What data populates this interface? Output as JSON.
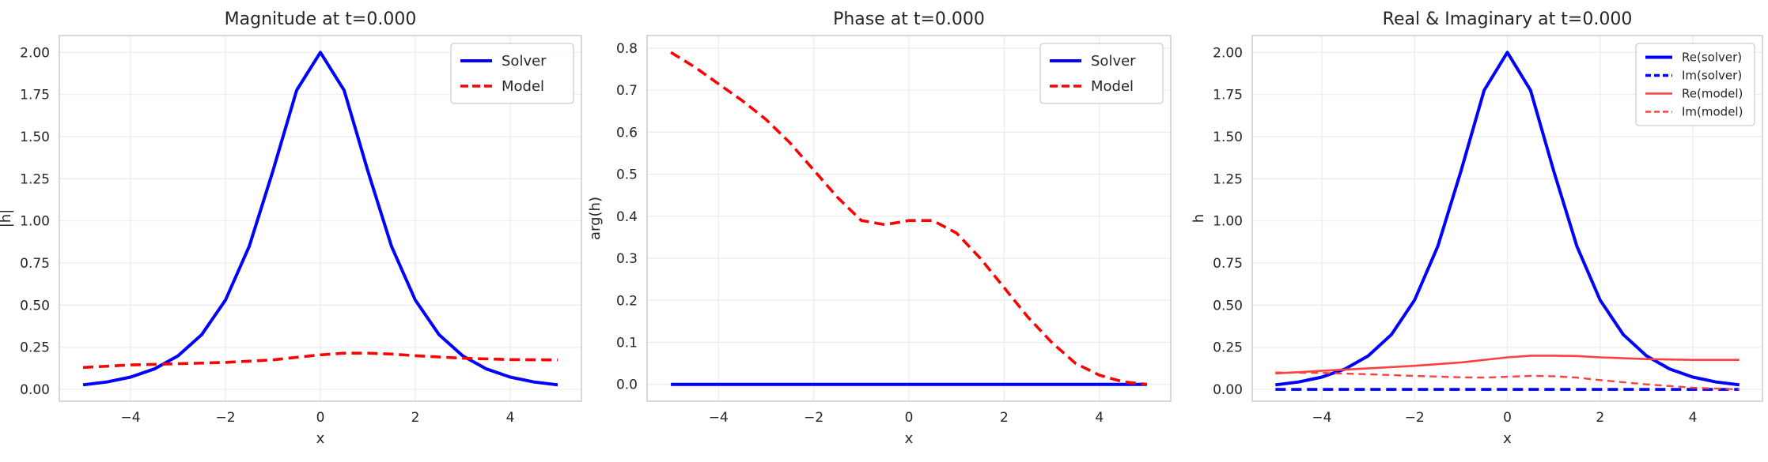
{
  "chart_data": [
    {
      "type": "line",
      "title": "Magnitude at t=0.000",
      "xlabel": "x",
      "ylabel": "|h|",
      "xlim": [
        -5.5,
        5.5
      ],
      "ylim": [
        -0.07,
        2.1
      ],
      "xticks": [
        -4,
        -2,
        0,
        2,
        4
      ],
      "xtick_labels": [
        "−4",
        "−2",
        "0",
        "2",
        "4"
      ],
      "yticks": [
        0,
        0.25,
        0.5,
        0.75,
        1.0,
        1.25,
        1.5,
        1.75,
        2.0
      ],
      "ytick_labels": [
        "0.00",
        "0.25",
        "0.50",
        "0.75",
        "1.00",
        "1.25",
        "1.50",
        "1.75",
        "2.00"
      ],
      "grid": true,
      "legend_position": "top-right",
      "series": [
        {
          "name": "Solver",
          "color": "#0000ff",
          "style": "solid",
          "x": [
            -5,
            -4.5,
            -4,
            -3.5,
            -3,
            -2.5,
            -2,
            -1.5,
            -1,
            -0.5,
            0,
            0.5,
            1,
            1.5,
            2,
            2.5,
            3,
            3.5,
            4,
            4.5,
            5
          ],
          "values": [
            0.027,
            0.044,
            0.073,
            0.121,
            0.199,
            0.325,
            0.53,
            0.848,
            1.296,
            1.775,
            2.0,
            1.775,
            1.296,
            0.848,
            0.53,
            0.325,
            0.199,
            0.121,
            0.073,
            0.044,
            0.027
          ]
        },
        {
          "name": "Model",
          "color": "#ff0000",
          "style": "dashed",
          "x": [
            -5,
            -4,
            -3,
            -2,
            -1,
            -0.5,
            0,
            0.5,
            1,
            1.5,
            2,
            3,
            4,
            5
          ],
          "values": [
            0.13,
            0.145,
            0.152,
            0.16,
            0.175,
            0.19,
            0.205,
            0.215,
            0.215,
            0.21,
            0.2,
            0.185,
            0.177,
            0.175
          ]
        }
      ]
    },
    {
      "type": "line",
      "title": "Phase at t=0.000",
      "xlabel": "x",
      "ylabel": "arg(h)",
      "xlim": [
        -5.5,
        5.5
      ],
      "ylim": [
        -0.04,
        0.83
      ],
      "xticks": [
        -4,
        -2,
        0,
        2,
        4
      ],
      "xtick_labels": [
        "−4",
        "−2",
        "0",
        "2",
        "4"
      ],
      "yticks": [
        0,
        0.1,
        0.2,
        0.3,
        0.4,
        0.5,
        0.6,
        0.7,
        0.8
      ],
      "ytick_labels": [
        "0.0",
        "0.1",
        "0.2",
        "0.3",
        "0.4",
        "0.5",
        "0.6",
        "0.7",
        "0.8"
      ],
      "grid": true,
      "legend_position": "top-right",
      "series": [
        {
          "name": "Solver",
          "color": "#0000ff",
          "style": "solid",
          "x": [
            -5,
            5
          ],
          "values": [
            0,
            0
          ]
        },
        {
          "name": "Model",
          "color": "#ff0000",
          "style": "dashed",
          "x": [
            -5,
            -4.5,
            -4,
            -3.5,
            -3,
            -2.5,
            -2,
            -1.5,
            -1,
            -0.5,
            0,
            0.5,
            1,
            1.5,
            2,
            2.5,
            3,
            3.5,
            4,
            4.5,
            5
          ],
          "values": [
            0.79,
            0.755,
            0.715,
            0.675,
            0.63,
            0.575,
            0.51,
            0.445,
            0.39,
            0.38,
            0.39,
            0.39,
            0.36,
            0.3,
            0.23,
            0.16,
            0.1,
            0.05,
            0.022,
            0.006,
            0.0
          ]
        }
      ]
    },
    {
      "type": "line",
      "title": "Real & Imaginary at t=0.000",
      "xlabel": "x",
      "ylabel": "h",
      "xlim": [
        -5.5,
        5.5
      ],
      "ylim": [
        -0.07,
        2.1
      ],
      "xticks": [
        -4,
        -2,
        0,
        2,
        4
      ],
      "xtick_labels": [
        "−4",
        "−2",
        "0",
        "2",
        "4"
      ],
      "yticks": [
        0,
        0.25,
        0.5,
        0.75,
        1.0,
        1.25,
        1.5,
        1.75,
        2.0
      ],
      "ytick_labels": [
        "0.00",
        "0.25",
        "0.50",
        "0.75",
        "1.00",
        "1.25",
        "1.50",
        "1.75",
        "2.00"
      ],
      "grid": true,
      "legend_position": "top-right",
      "series": [
        {
          "name": "Re(solver)",
          "color": "#0000ff",
          "style": "solid",
          "x": [
            -5,
            -4.5,
            -4,
            -3.5,
            -3,
            -2.5,
            -2,
            -1.5,
            -1,
            -0.5,
            0,
            0.5,
            1,
            1.5,
            2,
            2.5,
            3,
            3.5,
            4,
            4.5,
            5
          ],
          "values": [
            0.027,
            0.044,
            0.073,
            0.121,
            0.199,
            0.325,
            0.53,
            0.848,
            1.296,
            1.775,
            2.0,
            1.775,
            1.296,
            0.848,
            0.53,
            0.325,
            0.199,
            0.121,
            0.073,
            0.044,
            0.027
          ]
        },
        {
          "name": "Im(solver)",
          "color": "#0000ff",
          "style": "dashed",
          "x": [
            -5,
            5
          ],
          "values": [
            0,
            0
          ]
        },
        {
          "name": "Re(model)",
          "color": "#ff4040",
          "style": "solid-thin",
          "x": [
            -5,
            -4,
            -3,
            -2,
            -1,
            0,
            0.5,
            1,
            1.5,
            2,
            3,
            4,
            5
          ],
          "values": [
            0.095,
            0.11,
            0.125,
            0.14,
            0.16,
            0.19,
            0.2,
            0.2,
            0.198,
            0.19,
            0.18,
            0.175,
            0.175
          ]
        },
        {
          "name": "Im(model)",
          "color": "#ff4040",
          "style": "dashed-thin",
          "x": [
            -5,
            -4,
            -3,
            -2,
            -1,
            -0.5,
            0,
            0.5,
            1,
            1.5,
            2,
            3,
            4,
            5
          ],
          "values": [
            0.1,
            0.098,
            0.09,
            0.08,
            0.072,
            0.07,
            0.075,
            0.08,
            0.078,
            0.07,
            0.055,
            0.03,
            0.01,
            0.0
          ]
        }
      ]
    }
  ]
}
